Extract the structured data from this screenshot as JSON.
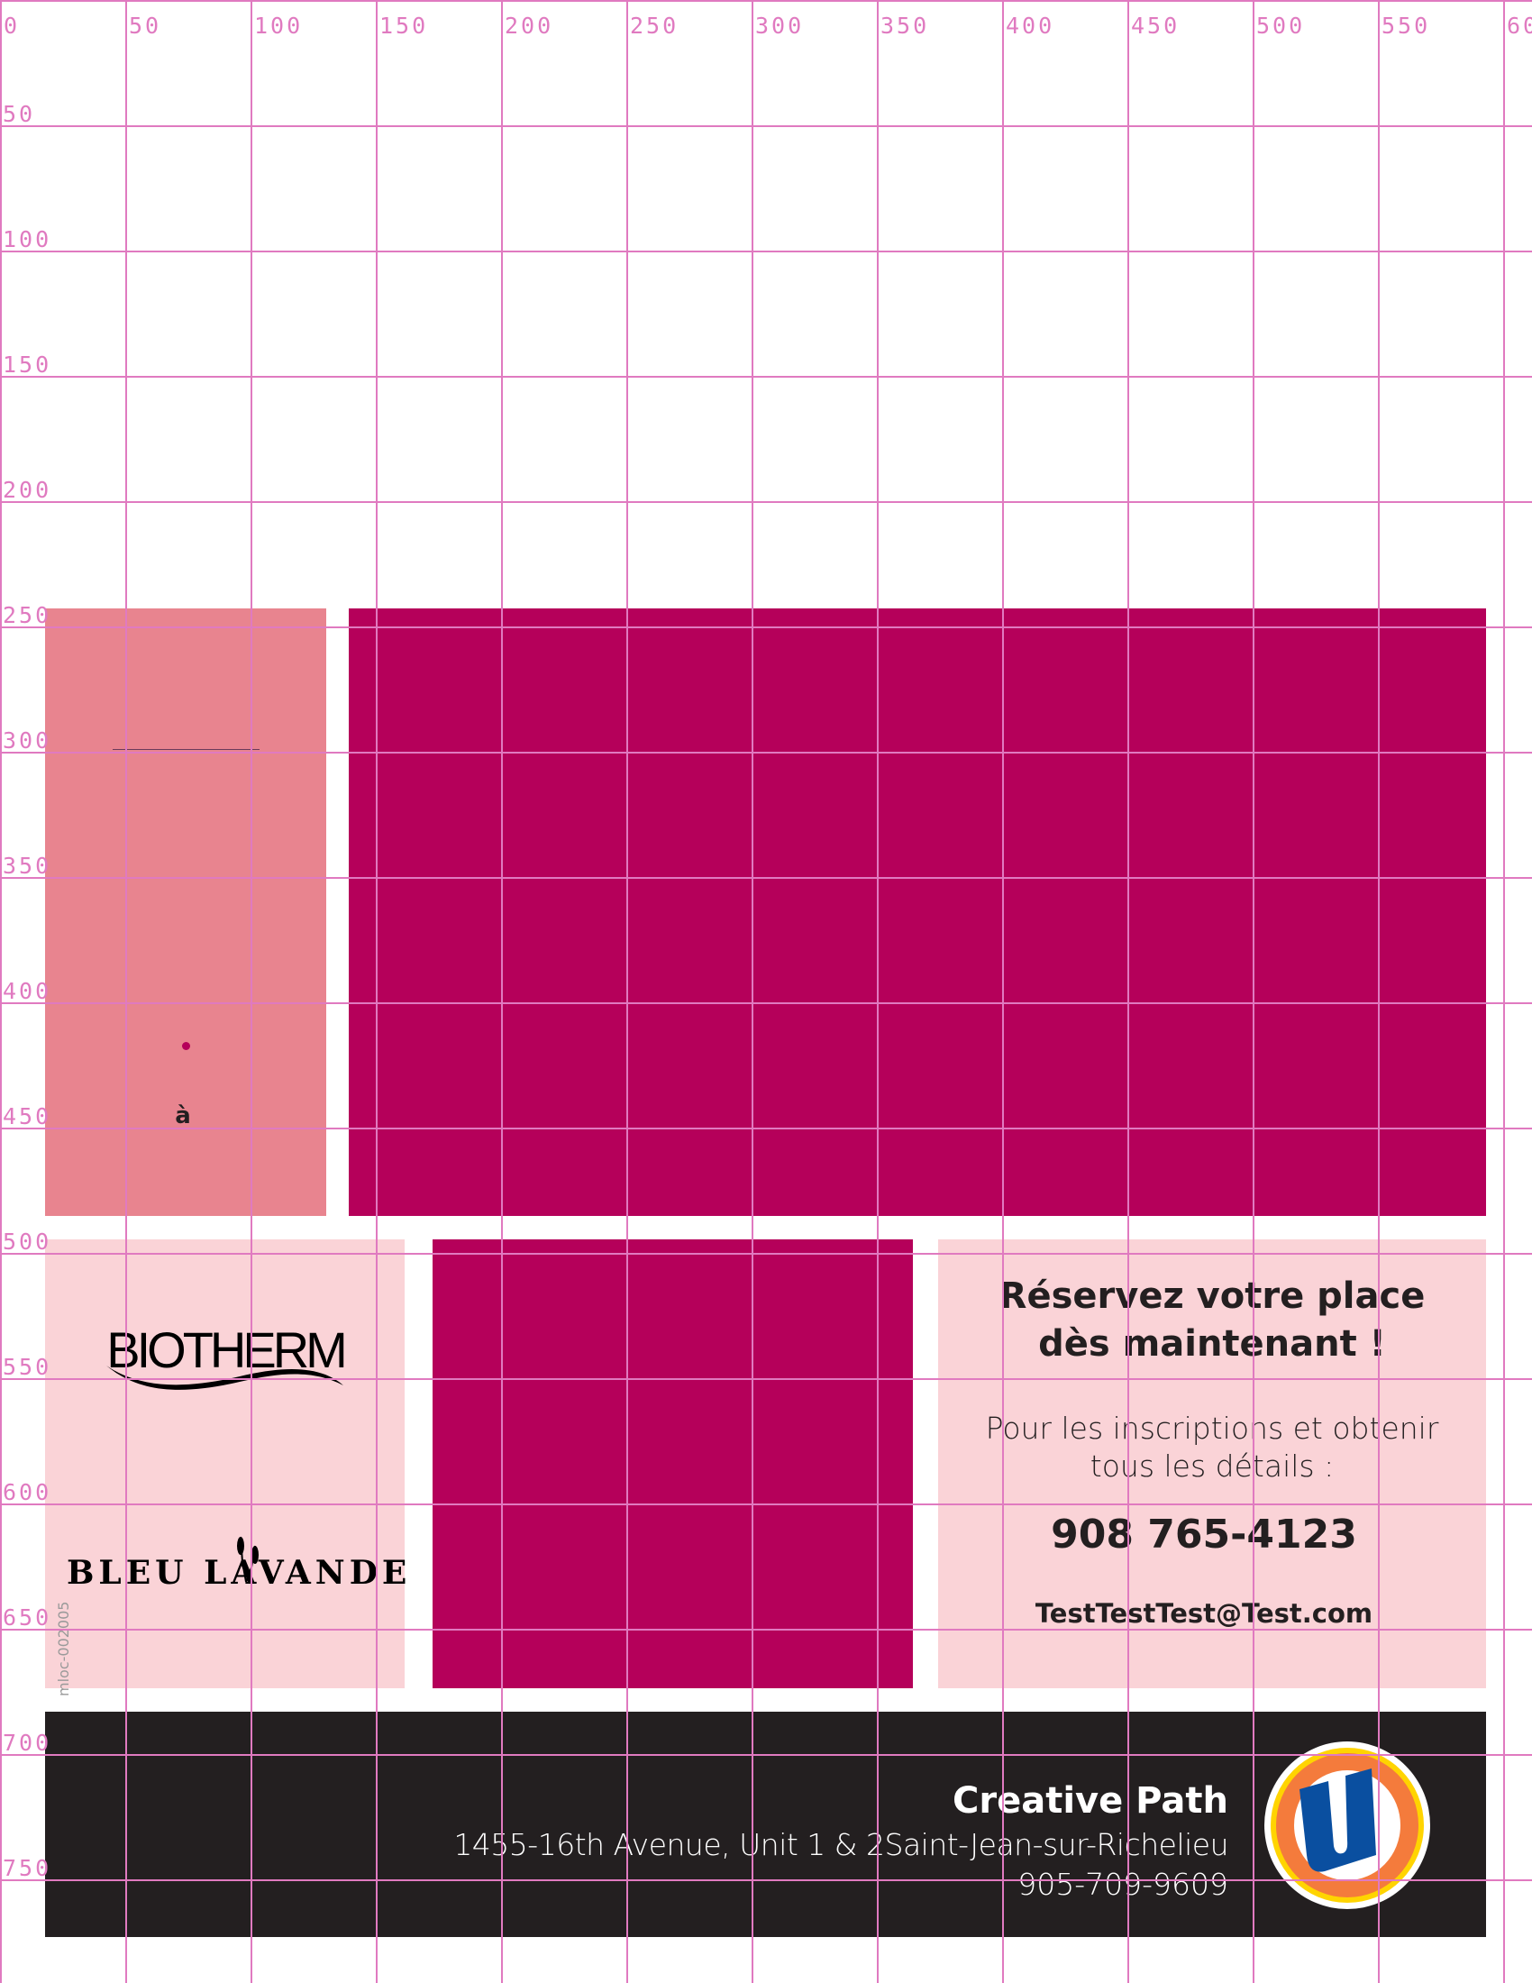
{
  "colors": {
    "grid": "#e07ac0",
    "magenta": "#b5005a",
    "rose": "#e8848f",
    "light_pink": "#fad3d7",
    "footer_bg": "#231f20",
    "logo_blue": "#0a4fa0",
    "logo_orange": "#f47b3c",
    "logo_yellow": "#ffd400"
  },
  "ruler": {
    "top": [
      "0",
      "50",
      "100",
      "150",
      "200",
      "250",
      "300",
      "350",
      "400",
      "450",
      "500",
      "550",
      "60"
    ],
    "left": [
      "50",
      "100",
      "150",
      "200",
      "250",
      "300",
      "350",
      "400",
      "450",
      "500",
      "550",
      "600",
      "650",
      "700",
      "750"
    ]
  },
  "left_panel": {
    "accent_char": "à"
  },
  "brands": {
    "biotherm": "BIOTHERM",
    "bleu_lavande": "BLEU LAVANDE"
  },
  "side_code": "mloc-002005",
  "reserve": {
    "title_line1": "Réservez votre place",
    "title_line2": "dès maintenant !",
    "info_line1": "Pour les inscriptions et obtenir",
    "info_line2": "tous les détails :",
    "phone": "908 765-4123",
    "email": "TestTestTest@Test.com"
  },
  "footer": {
    "store_name": "Creative Path",
    "address": "1455-16th Avenue, Unit 1 & 2Saint-Jean-sur-Richelieu",
    "phone": "905-709-9609",
    "logo_icon": "uniprix-u-logo"
  }
}
